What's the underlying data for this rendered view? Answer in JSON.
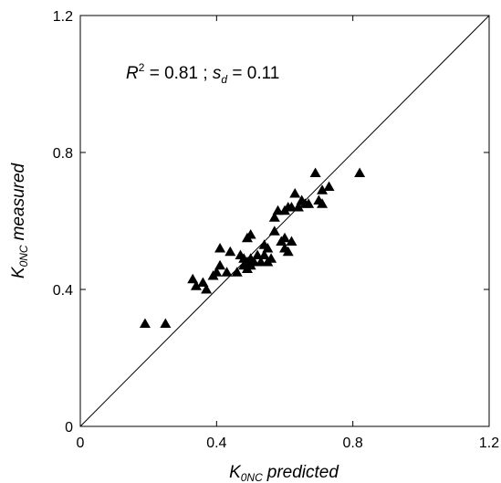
{
  "chart_data": {
    "type": "scatter",
    "title": "",
    "xlabel": {
      "main": "K",
      "sub": "0NC",
      "rest": "predicted"
    },
    "ylabel": {
      "main": "K",
      "sub": "0NC",
      "rest": "measured"
    },
    "xlim": [
      0,
      1.2
    ],
    "ylim": [
      0,
      1.2
    ],
    "xticks": [
      {
        "value": 0,
        "label": "0"
      },
      {
        "value": 0.4,
        "label": "0.4"
      },
      {
        "value": 0.8,
        "label": "0.8"
      },
      {
        "value": 1.2,
        "label": "1.2"
      }
    ],
    "yticks": [
      {
        "value": 0,
        "label": "0"
      },
      {
        "value": 0.4,
        "label": "0.4"
      },
      {
        "value": 0.8,
        "label": "0.8"
      },
      {
        "value": 1.2,
        "label": "1.2"
      }
    ],
    "grid": false,
    "marker": "filled-triangle",
    "reference_line": {
      "type": "1:1",
      "from": [
        0,
        0
      ],
      "to": [
        1.2,
        1.2
      ]
    },
    "annotation": {
      "r_symbol": "R",
      "r_exp": "2",
      "r_eq": " = 0.81 ; ",
      "s_symbol": "s",
      "s_sub": "d",
      "s_eq": " = 0.11"
    },
    "points": [
      {
        "x": 0.19,
        "y": 0.3
      },
      {
        "x": 0.25,
        "y": 0.3
      },
      {
        "x": 0.33,
        "y": 0.43
      },
      {
        "x": 0.34,
        "y": 0.41
      },
      {
        "x": 0.36,
        "y": 0.42
      },
      {
        "x": 0.37,
        "y": 0.4
      },
      {
        "x": 0.39,
        "y": 0.44
      },
      {
        "x": 0.4,
        "y": 0.45
      },
      {
        "x": 0.41,
        "y": 0.47
      },
      {
        "x": 0.43,
        "y": 0.45
      },
      {
        "x": 0.44,
        "y": 0.51
      },
      {
        "x": 0.46,
        "y": 0.45
      },
      {
        "x": 0.47,
        "y": 0.5
      },
      {
        "x": 0.48,
        "y": 0.47
      },
      {
        "x": 0.48,
        "y": 0.49
      },
      {
        "x": 0.49,
        "y": 0.48
      },
      {
        "x": 0.49,
        "y": 0.46
      },
      {
        "x": 0.5,
        "y": 0.49
      },
      {
        "x": 0.5,
        "y": 0.47
      },
      {
        "x": 0.51,
        "y": 0.48
      },
      {
        "x": 0.52,
        "y": 0.5
      },
      {
        "x": 0.53,
        "y": 0.48
      },
      {
        "x": 0.54,
        "y": 0.5
      },
      {
        "x": 0.54,
        "y": 0.53
      },
      {
        "x": 0.55,
        "y": 0.48
      },
      {
        "x": 0.55,
        "y": 0.52
      },
      {
        "x": 0.56,
        "y": 0.49
      },
      {
        "x": 0.57,
        "y": 0.57
      },
      {
        "x": 0.57,
        "y": 0.61
      },
      {
        "x": 0.59,
        "y": 0.54
      },
      {
        "x": 0.6,
        "y": 0.52
      },
      {
        "x": 0.6,
        "y": 0.55
      },
      {
        "x": 0.61,
        "y": 0.51
      },
      {
        "x": 0.62,
        "y": 0.54
      },
      {
        "x": 0.62,
        "y": 0.64
      },
      {
        "x": 0.63,
        "y": 0.68
      },
      {
        "x": 0.64,
        "y": 0.64
      },
      {
        "x": 0.65,
        "y": 0.66
      },
      {
        "x": 0.66,
        "y": 0.65
      },
      {
        "x": 0.67,
        "y": 0.65
      },
      {
        "x": 0.69,
        "y": 0.74
      },
      {
        "x": 0.7,
        "y": 0.66
      },
      {
        "x": 0.71,
        "y": 0.69
      },
      {
        "x": 0.73,
        "y": 0.7
      },
      {
        "x": 0.82,
        "y": 0.74
      },
      {
        "x": 0.41,
        "y": 0.52
      },
      {
        "x": 0.49,
        "y": 0.55
      },
      {
        "x": 0.5,
        "y": 0.56
      },
      {
        "x": 0.58,
        "y": 0.63
      },
      {
        "x": 0.6,
        "y": 0.63
      },
      {
        "x": 0.61,
        "y": 0.64
      },
      {
        "x": 0.71,
        "y": 0.65
      }
    ]
  }
}
